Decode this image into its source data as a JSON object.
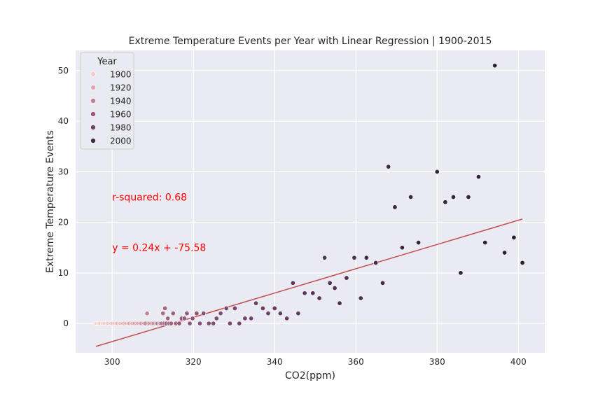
{
  "chart_data": {
    "type": "scatter",
    "title": "Extreme Temperature Events per Year with Linear Regression | 1900-2015",
    "xlabel": "CO2(ppm)",
    "ylabel": "Extreme Temperature Events",
    "xlim": [
      291,
      406.5
    ],
    "ylim": [
      -5.8,
      54
    ],
    "xticks": [
      300,
      320,
      340,
      360,
      380,
      400
    ],
    "yticks": [
      0,
      10,
      20,
      30,
      40,
      50
    ],
    "grid": true,
    "legend": {
      "title": "Year",
      "placement": "top-left",
      "entries": [
        {
          "label": "1900",
          "color": "#f2ccc9"
        },
        {
          "label": "1920",
          "color": "#dea7ae"
        },
        {
          "label": "1940",
          "color": "#c1808f"
        },
        {
          "label": "1960",
          "color": "#985a7c"
        },
        {
          "label": "1980",
          "color": "#6b3f6b"
        },
        {
          "label": "2000",
          "color": "#3d2845"
        }
      ]
    },
    "annotations": [
      {
        "text": "r-squared: 0.68",
        "x": 300,
        "y": 25,
        "color": "#ff0000"
      },
      {
        "text": "y = 0.24x + -75.58",
        "x": 300,
        "y": 15,
        "color": "#ff0000"
      }
    ],
    "regression": {
      "slope": 0.24,
      "intercept": -75.58,
      "x_range": [
        296,
        401
      ],
      "color": "#c44e52"
    },
    "year_color_scale": [
      {
        "year": 1900,
        "color": "#f2ccc9"
      },
      {
        "year": 1920,
        "color": "#dea7ae"
      },
      {
        "year": 1940,
        "color": "#c1808f"
      },
      {
        "year": 1960,
        "color": "#985a7c"
      },
      {
        "year": 1980,
        "color": "#6b3f6b"
      },
      {
        "year": 2000,
        "color": "#3d2845"
      },
      {
        "year": 2015,
        "color": "#2d1e3e"
      }
    ],
    "points": [
      {
        "year": 1900,
        "x": 296.0,
        "y": 0
      },
      {
        "year": 1901,
        "x": 296.3,
        "y": 0
      },
      {
        "year": 1902,
        "x": 296.6,
        "y": 0
      },
      {
        "year": 1903,
        "x": 296.9,
        "y": 0
      },
      {
        "year": 1904,
        "x": 297.2,
        "y": 0
      },
      {
        "year": 1905,
        "x": 297.6,
        "y": 0
      },
      {
        "year": 1906,
        "x": 297.9,
        "y": 0
      },
      {
        "year": 1907,
        "x": 298.2,
        "y": 0
      },
      {
        "year": 1908,
        "x": 298.5,
        "y": 0
      },
      {
        "year": 1909,
        "x": 298.8,
        "y": 0
      },
      {
        "year": 1910,
        "x": 299.2,
        "y": 0
      },
      {
        "year": 1911,
        "x": 299.5,
        "y": 0
      },
      {
        "year": 1912,
        "x": 299.8,
        "y": 0
      },
      {
        "year": 1913,
        "x": 300.1,
        "y": 0
      },
      {
        "year": 1914,
        "x": 300.5,
        "y": 0
      },
      {
        "year": 1915,
        "x": 300.8,
        "y": 0
      },
      {
        "year": 1916,
        "x": 301.1,
        "y": 0
      },
      {
        "year": 1917,
        "x": 301.4,
        "y": 0
      },
      {
        "year": 1918,
        "x": 301.8,
        "y": 0
      },
      {
        "year": 1919,
        "x": 302.1,
        "y": 0
      },
      {
        "year": 1920,
        "x": 302.4,
        "y": 0
      },
      {
        "year": 1921,
        "x": 302.7,
        "y": 0
      },
      {
        "year": 1922,
        "x": 303.0,
        "y": 0
      },
      {
        "year": 1923,
        "x": 303.4,
        "y": 0
      },
      {
        "year": 1924,
        "x": 303.7,
        "y": 0
      },
      {
        "year": 1925,
        "x": 304.0,
        "y": 0
      },
      {
        "year": 1926,
        "x": 304.3,
        "y": 0
      },
      {
        "year": 1927,
        "x": 304.7,
        "y": 0
      },
      {
        "year": 1928,
        "x": 305.0,
        "y": 0
      },
      {
        "year": 1929,
        "x": 305.3,
        "y": 0
      },
      {
        "year": 1930,
        "x": 305.6,
        "y": 0
      },
      {
        "year": 1931,
        "x": 306.0,
        "y": 0
      },
      {
        "year": 1932,
        "x": 306.3,
        "y": 0
      },
      {
        "year": 1933,
        "x": 306.6,
        "y": 0
      },
      {
        "year": 1934,
        "x": 306.9,
        "y": 0
      },
      {
        "year": 1935,
        "x": 307.2,
        "y": 0
      },
      {
        "year": 1936,
        "x": 307.6,
        "y": 0
      },
      {
        "year": 1937,
        "x": 307.9,
        "y": 0
      },
      {
        "year": 1938,
        "x": 308.2,
        "y": 0
      },
      {
        "year": 1939,
        "x": 308.6,
        "y": 2
      },
      {
        "year": 1940,
        "x": 308.9,
        "y": 0
      },
      {
        "year": 1941,
        "x": 309.2,
        "y": 0
      },
      {
        "year": 1942,
        "x": 309.6,
        "y": 0
      },
      {
        "year": 1943,
        "x": 309.9,
        "y": 0
      },
      {
        "year": 1944,
        "x": 310.2,
        "y": 0
      },
      {
        "year": 1945,
        "x": 310.6,
        "y": 0
      },
      {
        "year": 1946,
        "x": 310.9,
        "y": 0
      },
      {
        "year": 1947,
        "x": 311.2,
        "y": 0
      },
      {
        "year": 1948,
        "x": 311.6,
        "y": 0
      },
      {
        "year": 1949,
        "x": 311.9,
        "y": 0
      },
      {
        "year": 1950,
        "x": 312.2,
        "y": 0
      },
      {
        "year": 1951,
        "x": 312.5,
        "y": 2
      },
      {
        "year": 1952,
        "x": 312.8,
        "y": 0
      },
      {
        "year": 1953,
        "x": 313.0,
        "y": 3
      },
      {
        "year": 1954,
        "x": 313.3,
        "y": 0
      },
      {
        "year": 1955,
        "x": 313.7,
        "y": 1
      },
      {
        "year": 1956,
        "x": 314.0,
        "y": 0
      },
      {
        "year": 1957,
        "x": 314.5,
        "y": 0
      },
      {
        "year": 1958,
        "x": 315.0,
        "y": 2
      },
      {
        "year": 1959,
        "x": 315.7,
        "y": 0
      },
      {
        "year": 1960,
        "x": 316.5,
        "y": 0
      },
      {
        "year": 1961,
        "x": 317.1,
        "y": 1
      },
      {
        "year": 1962,
        "x": 317.8,
        "y": 1
      },
      {
        "year": 1963,
        "x": 318.4,
        "y": 2
      },
      {
        "year": 1964,
        "x": 319.1,
        "y": 0
      },
      {
        "year": 1965,
        "x": 319.8,
        "y": 1
      },
      {
        "year": 1966,
        "x": 320.8,
        "y": 2
      },
      {
        "year": 1967,
        "x": 321.6,
        "y": 0
      },
      {
        "year": 1968,
        "x": 322.5,
        "y": 2
      },
      {
        "year": 1969,
        "x": 323.8,
        "y": 0
      },
      {
        "year": 1970,
        "x": 324.9,
        "y": 0
      },
      {
        "year": 1971,
        "x": 325.7,
        "y": 1
      },
      {
        "year": 1972,
        "x": 326.7,
        "y": 2
      },
      {
        "year": 1973,
        "x": 328.1,
        "y": 3
      },
      {
        "year": 1974,
        "x": 329.0,
        "y": 0
      },
      {
        "year": 1975,
        "x": 330.2,
        "y": 3
      },
      {
        "year": 1976,
        "x": 331.3,
        "y": 0
      },
      {
        "year": 1977,
        "x": 332.7,
        "y": 1
      },
      {
        "year": 1978,
        "x": 334.2,
        "y": 1
      },
      {
        "year": 1979,
        "x": 335.4,
        "y": 4
      },
      {
        "year": 1980,
        "x": 337.1,
        "y": 3
      },
      {
        "year": 1981,
        "x": 338.4,
        "y": 2
      },
      {
        "year": 1982,
        "x": 340.0,
        "y": 3
      },
      {
        "year": 1983,
        "x": 341.4,
        "y": 2
      },
      {
        "year": 1984,
        "x": 343.0,
        "y": 1
      },
      {
        "year": 1985,
        "x": 344.5,
        "y": 8
      },
      {
        "year": 1986,
        "x": 345.8,
        "y": 2
      },
      {
        "year": 1987,
        "x": 347.4,
        "y": 6
      },
      {
        "year": 1988,
        "x": 349.4,
        "y": 6
      },
      {
        "year": 1989,
        "x": 351.0,
        "y": 5
      },
      {
        "year": 1990,
        "x": 352.3,
        "y": 13
      },
      {
        "year": 1991,
        "x": 353.6,
        "y": 8
      },
      {
        "year": 1992,
        "x": 354.8,
        "y": 7
      },
      {
        "year": 1993,
        "x": 356.0,
        "y": 4
      },
      {
        "year": 1994,
        "x": 357.7,
        "y": 9
      },
      {
        "year": 1995,
        "x": 359.6,
        "y": 13
      },
      {
        "year": 1996,
        "x": 361.2,
        "y": 5
      },
      {
        "year": 1997,
        "x": 362.6,
        "y": 13
      },
      {
        "year": 1998,
        "x": 364.9,
        "y": 12
      },
      {
        "year": 1999,
        "x": 366.6,
        "y": 8
      },
      {
        "year": 2000,
        "x": 368.0,
        "y": 31
      },
      {
        "year": 2001,
        "x": 369.6,
        "y": 23
      },
      {
        "year": 2002,
        "x": 371.4,
        "y": 15
      },
      {
        "year": 2003,
        "x": 373.5,
        "y": 25
      },
      {
        "year": 2004,
        "x": 375.4,
        "y": 16
      },
      {
        "year": 2005,
        "x": 380.0,
        "y": 30
      },
      {
        "year": 2006,
        "x": 382.0,
        "y": 24
      },
      {
        "year": 2007,
        "x": 384.0,
        "y": 25
      },
      {
        "year": 2008,
        "x": 385.8,
        "y": 10
      },
      {
        "year": 2009,
        "x": 387.7,
        "y": 25
      },
      {
        "year": 2010,
        "x": 390.2,
        "y": 29
      },
      {
        "year": 2011,
        "x": 391.8,
        "y": 16
      },
      {
        "year": 2012,
        "x": 394.2,
        "y": 51
      },
      {
        "year": 2013,
        "x": 396.6,
        "y": 14
      },
      {
        "year": 2014,
        "x": 398.9,
        "y": 17
      },
      {
        "year": 2015,
        "x": 401.0,
        "y": 12
      }
    ]
  }
}
